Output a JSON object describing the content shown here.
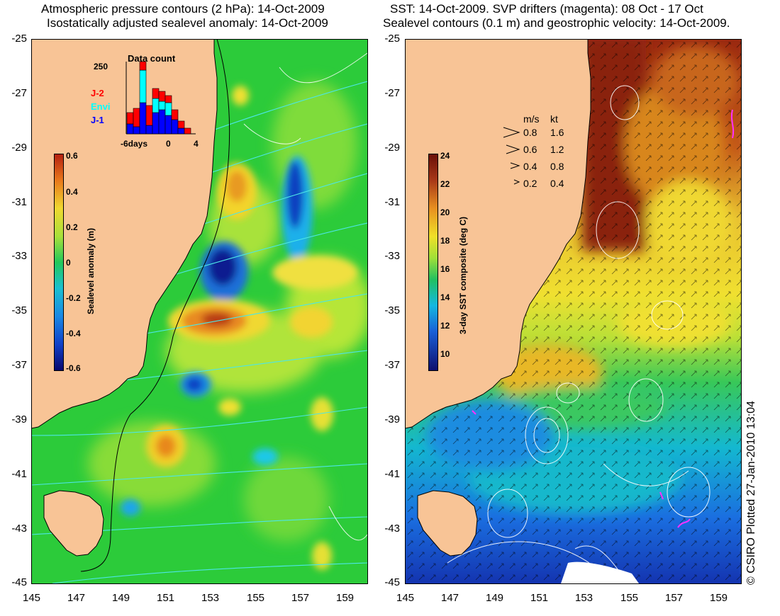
{
  "left_panel": {
    "title_line1": "Atmospheric pressure contours (2 hPa): 14-Oct-2009",
    "title_line2": "Isostatically adjusted sealevel anomaly: 14-Oct-2009",
    "colorbar": {
      "label": "Sealevel anomaly (m)",
      "ticks": [
        "0.6",
        "0.4",
        "0.2",
        "0",
        "-0.2",
        "-0.4",
        "-0.6"
      ],
      "colors": [
        "#08086e",
        "#1030d0",
        "#1ab4f0",
        "#23c85a",
        "#9ae53a",
        "#f0e030",
        "#f08a20",
        "#b42010"
      ]
    },
    "inset": {
      "title": "Data count",
      "ymax_label": "250",
      "xticks": [
        "-6days",
        "0",
        "4"
      ],
      "legend": [
        {
          "label": "J-2",
          "color": "#ff0000"
        },
        {
          "label": "Envi",
          "color": "#00ffff"
        },
        {
          "label": "J-1",
          "color": "#0000ff"
        }
      ]
    }
  },
  "right_panel": {
    "title_line1": "SST: 14-Oct-2009. SVP drifters (magenta): 08 Oct - 17 Oct",
    "title_line2": "Sealevel contours (0.1 m) and geostrophic velocity: 14-Oct-2009.",
    "colorbar": {
      "label": "3-day SST composite (deg C)",
      "ticks": [
        "24",
        "22",
        "20",
        "18",
        "16",
        "14",
        "12",
        "10"
      ],
      "colors": [
        "#10106e",
        "#1840d8",
        "#12b8e8",
        "#20c060",
        "#a8e038",
        "#f0e028",
        "#e0901c",
        "#a03010",
        "#6a1008"
      ]
    },
    "velocity_legend": {
      "header_ms": "m/s",
      "header_kt": "kt",
      "rows": [
        {
          "ms": "0.8",
          "kt": "1.6"
        },
        {
          "ms": "0.6",
          "kt": "1.2"
        },
        {
          "ms": "0.4",
          "kt": "0.8"
        },
        {
          "ms": "0.2",
          "kt": "0.4"
        }
      ]
    }
  },
  "axes": {
    "x_ticks": [
      "145",
      "147",
      "149",
      "151",
      "153",
      "155",
      "157",
      "159"
    ],
    "y_ticks": [
      "-25",
      "-27",
      "-29",
      "-31",
      "-33",
      "-35",
      "-37",
      "-39",
      "-41",
      "-43",
      "-45"
    ]
  },
  "credit": "© CSIRO Plotted 27-Jan-2010 13:04",
  "colors": {
    "land": "#f8c496",
    "ocean_green": "#2ccb3a",
    "contour_cyan": "#4ce6e6",
    "contour_white": "#ffffff",
    "coast": "#000000"
  }
}
